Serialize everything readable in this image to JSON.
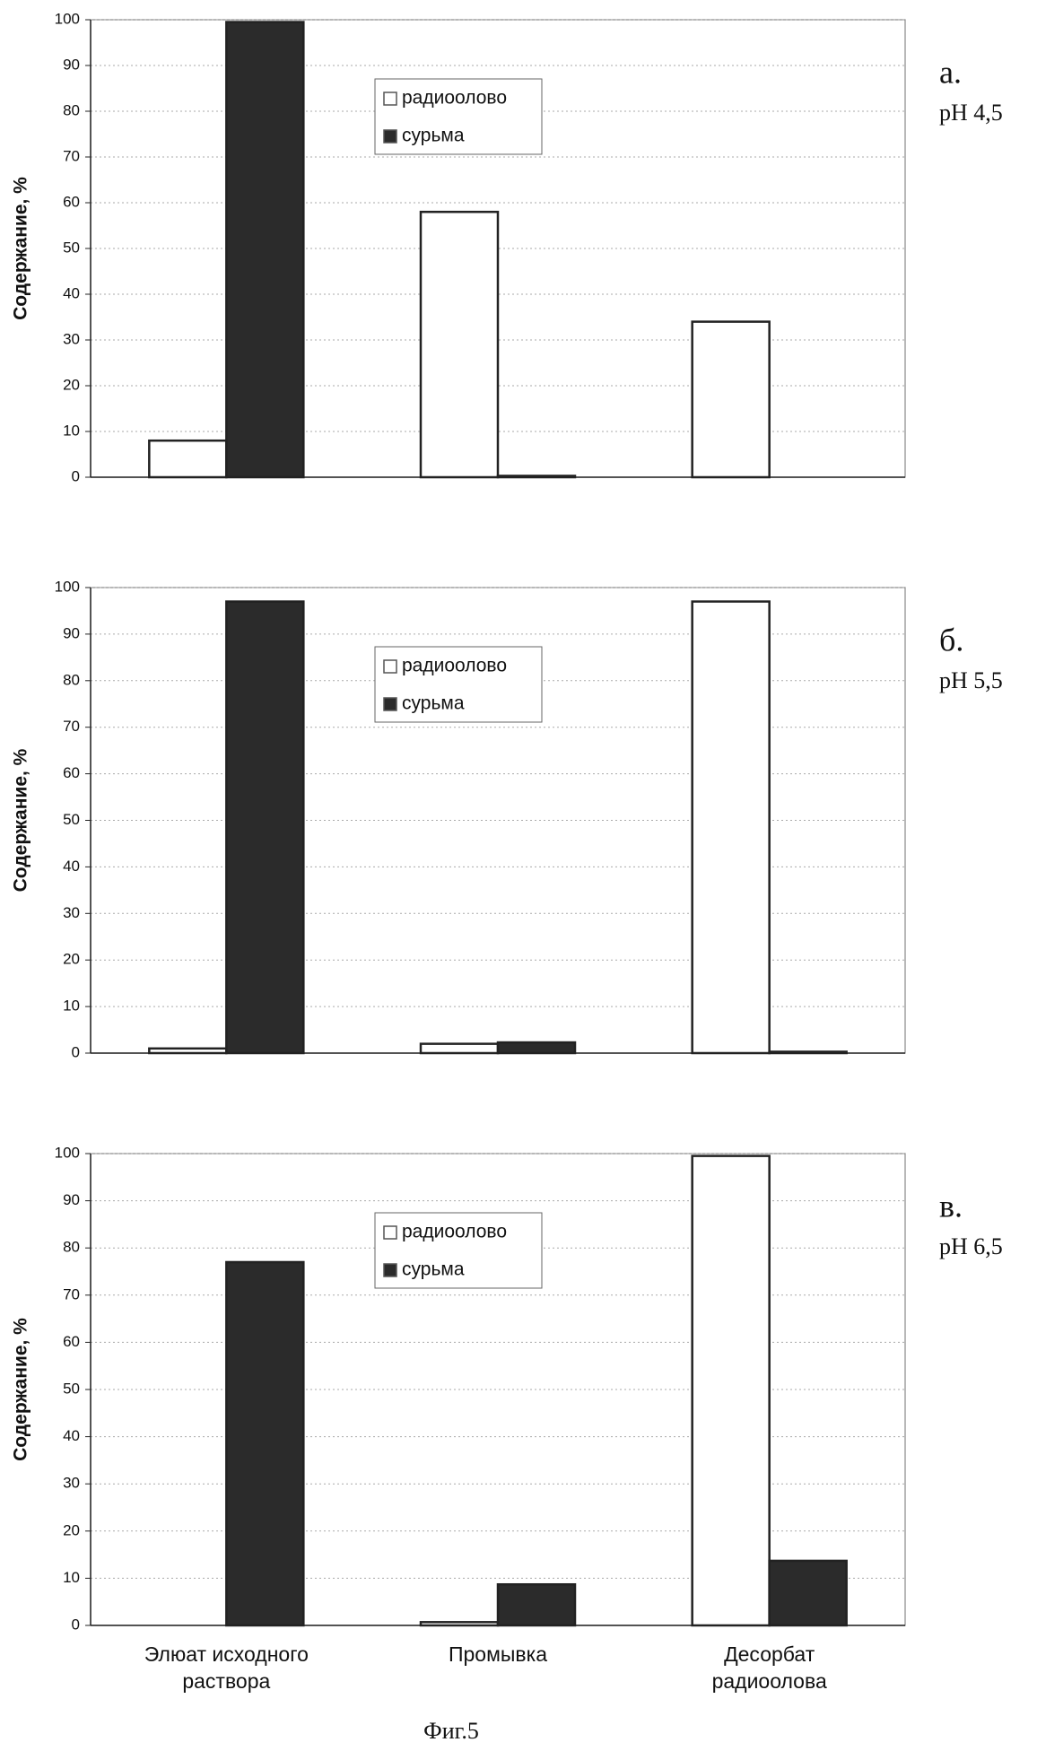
{
  "chart_data": [
    {
      "type": "bar",
      "label": "а.",
      "subtitle": "pH 4,5",
      "y_label": "Содержание, %",
      "categories": [
        null,
        null,
        null
      ],
      "series": [
        {
          "name": "радиоолово",
          "color": "#ffffff",
          "values": [
            8,
            58,
            34
          ]
        },
        {
          "name": "сурьма",
          "color": "#2b2b2b",
          "values": [
            99.5,
            0.3,
            null
          ]
        }
      ],
      "ylim": [
        0,
        100
      ],
      "yticks": [
        0,
        10,
        20,
        30,
        40,
        50,
        60,
        70,
        80,
        90,
        100
      ],
      "grid": true,
      "legend": "upper-center"
    },
    {
      "type": "bar",
      "label": "б.",
      "subtitle": "pH 5,5",
      "y_label": "Содержание, %",
      "categories": [
        null,
        null,
        null
      ],
      "series": [
        {
          "name": "радиоолово",
          "color": "#ffffff",
          "values": [
            1,
            2,
            97
          ]
        },
        {
          "name": "сурьма",
          "color": "#2b2b2b",
          "values": [
            97,
            2.3,
            0.3
          ]
        }
      ],
      "ylim": [
        0,
        100
      ],
      "yticks": [
        0,
        10,
        20,
        30,
        40,
        50,
        60,
        70,
        80,
        90,
        100
      ],
      "grid": true,
      "legend": "upper-center"
    },
    {
      "type": "bar",
      "label": "в.",
      "subtitle": "pH 6,5",
      "y_label": "Содержание, %",
      "categories": [
        "Элюат исходного\nраствора",
        "Промывка",
        "Десорбат\nрадиоолова"
      ],
      "series": [
        {
          "name": "радиоолово",
          "color": "#ffffff",
          "values": [
            null,
            0.7,
            99.5
          ]
        },
        {
          "name": "сурьма",
          "color": "#2b2b2b",
          "values": [
            77,
            8.7,
            13.7
          ]
        }
      ],
      "ylim": [
        0,
        100
      ],
      "yticks": [
        0,
        10,
        20,
        30,
        40,
        50,
        60,
        70,
        80,
        90,
        100
      ],
      "grid": true,
      "legend": "upper-center"
    }
  ],
  "caption": "Фиг.5"
}
